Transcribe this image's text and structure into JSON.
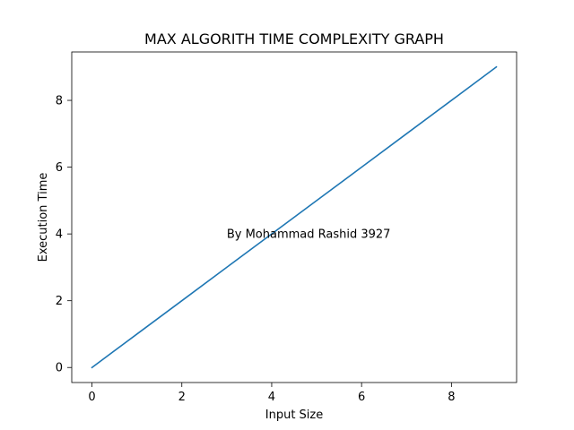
{
  "chart_data": {
    "type": "line",
    "title": "MAX ALGORITH TIME COMPLEXITY GRAPH",
    "xlabel": "Input Size",
    "ylabel": "Execution Time",
    "xlim": [
      -0.45,
      9.45
    ],
    "ylim": [
      -0.45,
      9.45
    ],
    "x_ticks": [
      0,
      2,
      4,
      6,
      8
    ],
    "y_ticks": [
      0,
      2,
      4,
      6,
      8
    ],
    "series": [
      {
        "x": [
          0,
          1,
          2,
          3,
          4,
          5,
          6,
          7,
          8,
          9
        ],
        "values": [
          0,
          1,
          2,
          3,
          4,
          5,
          6,
          7,
          8,
          9
        ],
        "color": "#1f77b4"
      }
    ],
    "annotation": {
      "text": "By Mohammad Rashid 3927",
      "x": 3,
      "y": 4
    },
    "grid": false,
    "legend": "none"
  }
}
